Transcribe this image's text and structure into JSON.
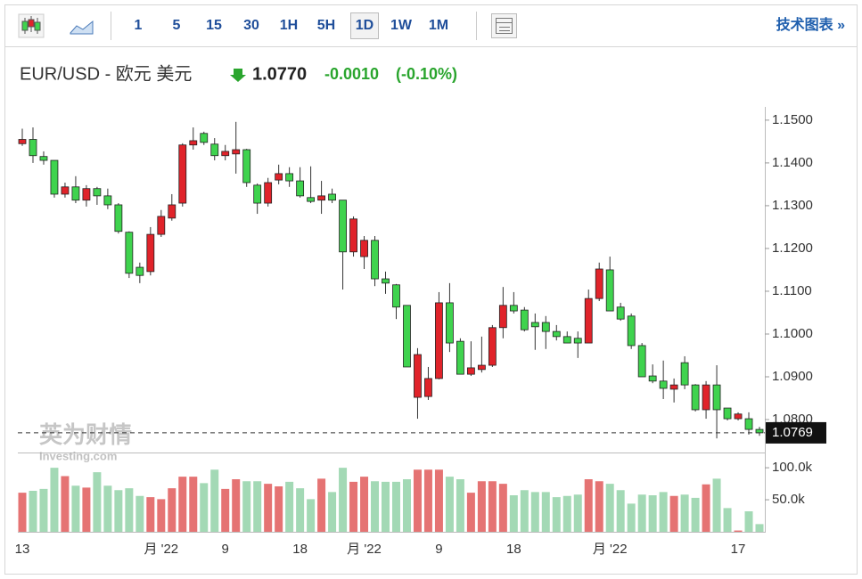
{
  "toolbar": {
    "buttons": [
      "1",
      "5",
      "15",
      "30",
      "1H",
      "5H",
      "1D",
      "1W",
      "1M"
    ],
    "link": "技术图表 »"
  },
  "header": {
    "symbol": "EUR/USD - 欧元 美元",
    "price": "1.0770",
    "change": "-0.0010",
    "change_pct": "(-0.10%)"
  },
  "watermark": {
    "brand": "英为财情",
    "site": "Investing.com"
  },
  "chart_data": {
    "type": "candlestick",
    "categories": [
      "13",
      null,
      null,
      null,
      null,
      null,
      null,
      null,
      null,
      null,
      null,
      null,
      null,
      "月 '22",
      null,
      null,
      null,
      null,
      null,
      "9",
      null,
      null,
      null,
      null,
      null,
      null,
      "18",
      null,
      null,
      null,
      null,
      null,
      "月 '22",
      null,
      null,
      null,
      null,
      null,
      null,
      "9",
      null,
      null,
      null,
      null,
      null,
      null,
      "18",
      null,
      null,
      null,
      null,
      null,
      null,
      null,
      null,
      "月 '22",
      null,
      null,
      null,
      null,
      null,
      null,
      null,
      null,
      null,
      null,
      null,
      "17",
      null,
      null
    ],
    "open": [
      1.1445,
      1.1455,
      1.1415,
      1.1406,
      1.1327,
      1.1344,
      1.1313,
      1.134,
      1.1323,
      1.1302,
      1.1238,
      1.1156,
      1.1146,
      1.1233,
      1.1271,
      1.1306,
      1.1442,
      1.1469,
      1.1444,
      1.1417,
      1.1421,
      1.1431,
      1.1348,
      1.1306,
      1.136,
      1.1375,
      1.1358,
      1.1319,
      1.1313,
      1.1327,
      1.1313,
      1.1192,
      1.1181,
      1.1219,
      1.1129,
      1.1115,
      1.1067,
      1.0852,
      1.0854,
      1.0896,
      1.1073,
      1.0983,
      1.0906,
      1.0917,
      1.0927,
      1.1015,
      1.1067,
      1.1056,
      1.1027,
      1.1027,
      1.1006,
      1.0994,
      1.099,
      1.0979,
      1.1083,
      1.115,
      1.1063,
      1.1042,
      1.0973,
      1.0902,
      1.089,
      1.0871,
      1.0933,
      1.0881,
      1.0823,
      1.0881,
      1.0827,
      1.0802,
      1.0802,
      1.0777
    ],
    "high": [
      1.148,
      1.1483,
      1.1427,
      1.1406,
      1.1354,
      1.1369,
      1.1348,
      1.1344,
      1.134,
      1.1306,
      1.124,
      1.1167,
      1.125,
      1.129,
      1.1327,
      1.1446,
      1.1483,
      1.1473,
      1.1458,
      1.1442,
      1.1496,
      1.1433,
      1.1352,
      1.1365,
      1.1396,
      1.139,
      1.139,
      1.1392,
      1.1358,
      1.134,
      1.1313,
      1.1275,
      1.1229,
      1.1229,
      1.1146,
      1.1117,
      1.1067,
      1.0967,
      1.0923,
      1.1098,
      1.1119,
      1.099,
      1.0983,
      1.0994,
      1.1021,
      1.111,
      1.1098,
      1.1063,
      1.1048,
      1.1042,
      1.1021,
      1.1006,
      1.1006,
      1.1104,
      1.1167,
      1.1181,
      1.1073,
      1.1048,
      1.0979,
      1.0929,
      1.0938,
      1.0896,
      1.0948,
      1.0883,
      1.089,
      1.0927,
      1.0827,
      1.0817,
      1.0817,
      1.0783
    ],
    "low": [
      1.144,
      1.14,
      1.1396,
      1.1319,
      1.1319,
      1.1306,
      1.1298,
      1.1302,
      1.1292,
      1.1235,
      1.1131,
      1.1119,
      1.1137,
      1.1227,
      1.1265,
      1.1298,
      1.1431,
      1.1442,
      1.1406,
      1.1406,
      1.1375,
      1.1344,
      1.1281,
      1.1298,
      1.135,
      1.1344,
      1.1319,
      1.1306,
      1.1281,
      1.1306,
      1.1104,
      1.1181,
      1.1152,
      1.1112,
      1.1094,
      1.1035,
      1.0923,
      1.0802,
      1.0846,
      1.0894,
      1.0958,
      1.0906,
      1.0902,
      1.091,
      1.0923,
      1.099,
      1.1048,
      1.1006,
      1.0963,
      1.0965,
      1.0985,
      1.0979,
      1.0944,
      1.0979,
      1.1077,
      1.1054,
      1.1031,
      1.0965,
      1.09,
      1.0885,
      1.0848,
      1.084,
      1.0871,
      1.0819,
      1.0802,
      1.0756,
      1.0798,
      1.0798,
      1.0765,
      1.0762
    ],
    "close": [
      1.1455,
      1.1417,
      1.1406,
      1.1327,
      1.1344,
      1.1313,
      1.134,
      1.1323,
      1.1302,
      1.124,
      1.1142,
      1.1137,
      1.1233,
      1.1275,
      1.1302,
      1.1442,
      1.1452,
      1.1448,
      1.1417,
      1.1427,
      1.1431,
      1.1354,
      1.1306,
      1.1354,
      1.1375,
      1.1358,
      1.1323,
      1.131,
      1.1323,
      1.1313,
      1.1192,
      1.1269,
      1.1219,
      1.1129,
      1.1119,
      1.1063,
      1.0923,
      1.0952,
      1.0896,
      1.1073,
      1.0979,
      1.0906,
      1.0921,
      1.0927,
      1.1015,
      1.1067,
      1.1054,
      1.101,
      1.1017,
      1.1006,
      1.0994,
      1.0979,
      1.0979,
      1.1083,
      1.1152,
      1.1054,
      1.1035,
      1.0973,
      1.09,
      1.089,
      1.0873,
      1.0881,
      1.0881,
      1.0823,
      1.0881,
      1.0823,
      1.0802,
      1.0813,
      1.0777,
      1.0769
    ],
    "volume": [
      61000,
      64000,
      67000,
      100000,
      87000,
      72000,
      69000,
      93000,
      72000,
      65000,
      68000,
      56000,
      54000,
      51000,
      68000,
      86000,
      86000,
      76000,
      97000,
      67000,
      82000,
      79000,
      79000,
      75000,
      71000,
      78000,
      68000,
      51000,
      83000,
      62000,
      100000,
      78000,
      86000,
      79000,
      78000,
      78000,
      82000,
      97000,
      97000,
      97000,
      86000,
      82000,
      61000,
      79000,
      79000,
      75000,
      57000,
      65000,
      62000,
      62000,
      54000,
      56000,
      58000,
      82000,
      79000,
      75000,
      65000,
      44000,
      58000,
      57000,
      62000,
      56000,
      58000,
      53000,
      74000,
      83000,
      37000,
      2000,
      32000,
      12000
    ],
    "up_color": "#e0232a",
    "down_color": "#3fd34e",
    "volume_up_color": "#e57373",
    "volume_down_color": "#a3d9b5",
    "ylim": [
      1.0723,
      1.1531
    ],
    "yticks": [
      {
        "value": 1.15,
        "label": "1.1500"
      },
      {
        "value": 1.14,
        "label": "1.1400"
      },
      {
        "value": 1.13,
        "label": "1.1300"
      },
      {
        "value": 1.12,
        "label": "1.1200"
      },
      {
        "value": 1.11,
        "label": "1.1100"
      },
      {
        "value": 1.1,
        "label": "1.1000"
      },
      {
        "value": 1.09,
        "label": "1.0900"
      },
      {
        "value": 1.08,
        "label": "1.0800"
      }
    ],
    "volume_ylim": [
      0,
      121000
    ],
    "volume_yticks": [
      {
        "value": 100000,
        "label": "100.0k"
      },
      {
        "value": 50000,
        "label": "50.0k"
      }
    ],
    "last_price": 1.0769
  }
}
